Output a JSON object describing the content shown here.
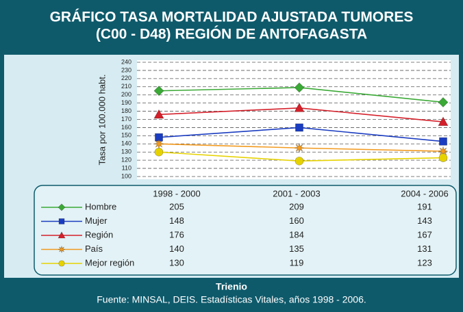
{
  "chart_data": {
    "type": "line",
    "title": [
      "GRÁFICO TASA MORTALIDAD AJUSTADA TUMORES",
      "(C00 - D48) REGIÓN DE ANTOFAGASTA"
    ],
    "ylabel": "Tasa por 100.000 habt.",
    "xlabel": "Trienio",
    "source": "Fuente: MINSAL, DEIS. Estadísticas Vitales, años 1998 - 2006.",
    "categories": [
      "1998 - 2000",
      "2001 - 2003",
      "2004 - 2006"
    ],
    "series": [
      {
        "name": "Hombre",
        "color": "#3aa935",
        "marker": "diamond",
        "values": [
          205,
          209,
          191
        ]
      },
      {
        "name": "Mujer",
        "color": "#1a3cc0",
        "marker": "square",
        "values": [
          148,
          160,
          143
        ]
      },
      {
        "name": "Región",
        "color": "#d4202a",
        "marker": "triangle",
        "values": [
          176,
          184,
          167
        ]
      },
      {
        "name": "País",
        "color": "#f29a1e",
        "marker": "star",
        "values": [
          140,
          135,
          131
        ]
      },
      {
        "name": "Mejor región",
        "color": "#e6d200",
        "marker": "circle",
        "values": [
          130,
          119,
          123
        ]
      }
    ],
    "ylim": [
      100,
      240
    ],
    "yticks": [
      100,
      110,
      120,
      130,
      140,
      150,
      160,
      170,
      180,
      190,
      200,
      210,
      220,
      230,
      240
    ],
    "grid": true
  }
}
